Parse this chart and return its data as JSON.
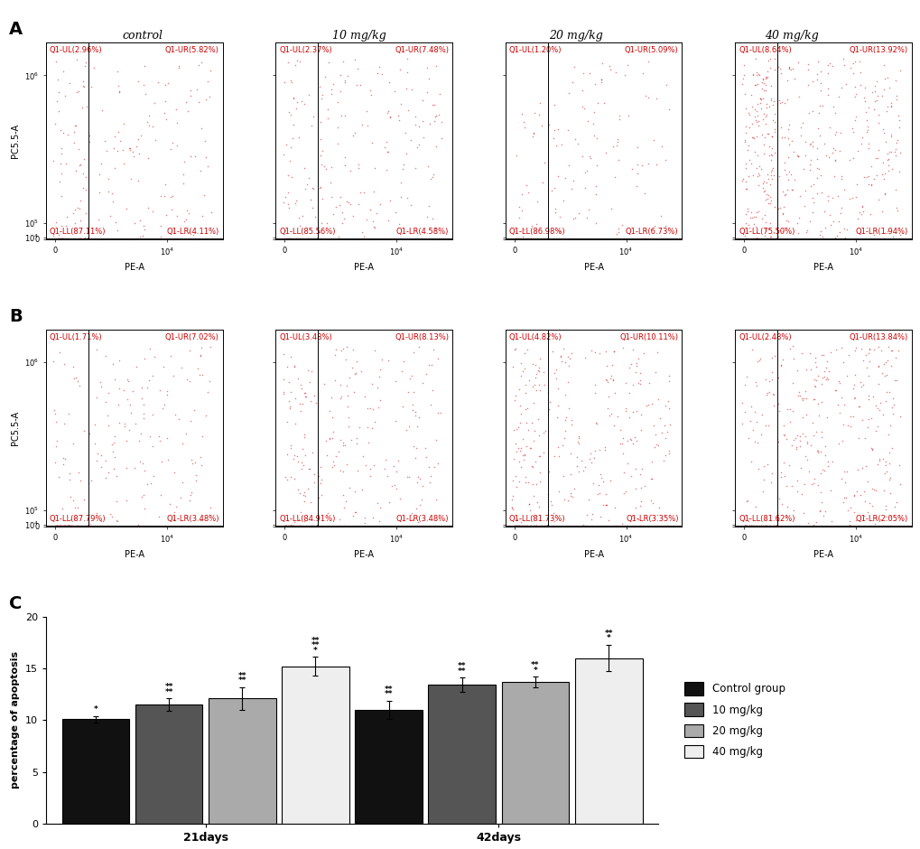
{
  "col_labels": [
    "control",
    "10 mg/kg",
    "20 mg/kg",
    "40 mg/kg"
  ],
  "panel_A": [
    {
      "UL": "Q1-UL(2.96%)",
      "UR": "Q1-UR(5.82%)",
      "LL": "Q1-LL(87.11%)",
      "LR": "Q1-LR(4.11%)",
      "ul_pct": 2.96,
      "ur_pct": 5.82,
      "ll_pct": 87.11,
      "lr_pct": 4.11
    },
    {
      "UL": "Q1-UL(2.37%)",
      "UR": "Q1-UR(7.48%)",
      "LL": "Q1-LL(85.56%)",
      "LR": "Q1-LR(4.58%)",
      "ul_pct": 2.37,
      "ur_pct": 7.48,
      "ll_pct": 85.56,
      "lr_pct": 4.58
    },
    {
      "UL": "Q1-UL(1.20%)",
      "UR": "Q1-UR(5.09%)",
      "LL": "Q1-LL(86.98%)",
      "LR": "Q1-LR(6.73%)",
      "ul_pct": 1.2,
      "ur_pct": 5.09,
      "ll_pct": 86.98,
      "lr_pct": 6.73
    },
    {
      "UL": "Q1-UL(8.64%)",
      "UR": "Q1-UR(13.92%)",
      "LL": "Q1-LL(75.50%)",
      "LR": "Q1-LR(1.94%)",
      "ul_pct": 8.64,
      "ur_pct": 13.92,
      "ll_pct": 75.5,
      "lr_pct": 1.94
    }
  ],
  "panel_B": [
    {
      "UL": "Q1-UL(1.71%)",
      "UR": "Q1-UR(7.02%)",
      "LL": "Q1-LL(87.79%)",
      "LR": "Q1-LR(3.48%)",
      "ul_pct": 1.71,
      "ur_pct": 7.02,
      "ll_pct": 87.79,
      "lr_pct": 3.48
    },
    {
      "UL": "Q1-UL(3.48%)",
      "UR": "Q1-UR(8.13%)",
      "LL": "Q1-LL(84.91%)",
      "LR": "Q1-LR(3.48%)",
      "ul_pct": 3.48,
      "ur_pct": 8.13,
      "ll_pct": 84.91,
      "lr_pct": 3.48
    },
    {
      "UL": "Q1-UL(4.82%)",
      "UR": "Q1-UR(10.11%)",
      "LL": "Q1-LL(81.73%)",
      "LR": "Q1-LR(3.35%)",
      "ul_pct": 4.82,
      "ur_pct": 10.11,
      "ll_pct": 81.73,
      "lr_pct": 3.35
    },
    {
      "UL": "Q1-UL(2.48%)",
      "UR": "Q1-UR(13.84%)",
      "LL": "Q1-LL(81.62%)",
      "LR": "Q1-LR(2.05%)",
      "ul_pct": 2.48,
      "ur_pct": 13.84,
      "ll_pct": 81.62,
      "lr_pct": 2.05
    }
  ],
  "bar_data": {
    "groups": [
      "21days",
      "42days"
    ],
    "values": [
      [
        10.1,
        11.5,
        12.1,
        15.2
      ],
      [
        11.0,
        13.4,
        13.7,
        16.0
      ]
    ],
    "errors": [
      [
        0.3,
        0.6,
        1.1,
        0.9
      ],
      [
        0.9,
        0.7,
        0.5,
        1.3
      ]
    ],
    "colors": [
      "#111111",
      "#555555",
      "#aaaaaa",
      "#eeeeee"
    ],
    "edge_colors": [
      "#000000",
      "#000000",
      "#000000",
      "#000000"
    ],
    "stars_21": [
      "*",
      "**\n**",
      "**\n**",
      "*\n**\n**"
    ],
    "stars_42": [
      "**\n**",
      "**\n**",
      "*\n**",
      "*\n**"
    ],
    "ylabel": "percentage of apoptosis",
    "ylim": [
      0,
      20
    ],
    "yticks": [
      0,
      5,
      10,
      15,
      20
    ],
    "legend_labels": [
      "Control group",
      "10 mg/kg",
      "20 mg/kg",
      "40 mg/kg"
    ]
  },
  "scatter_color": "#cc0000",
  "xaxis_label": "PE-A",
  "yaxis_label": "PC5.5-A"
}
